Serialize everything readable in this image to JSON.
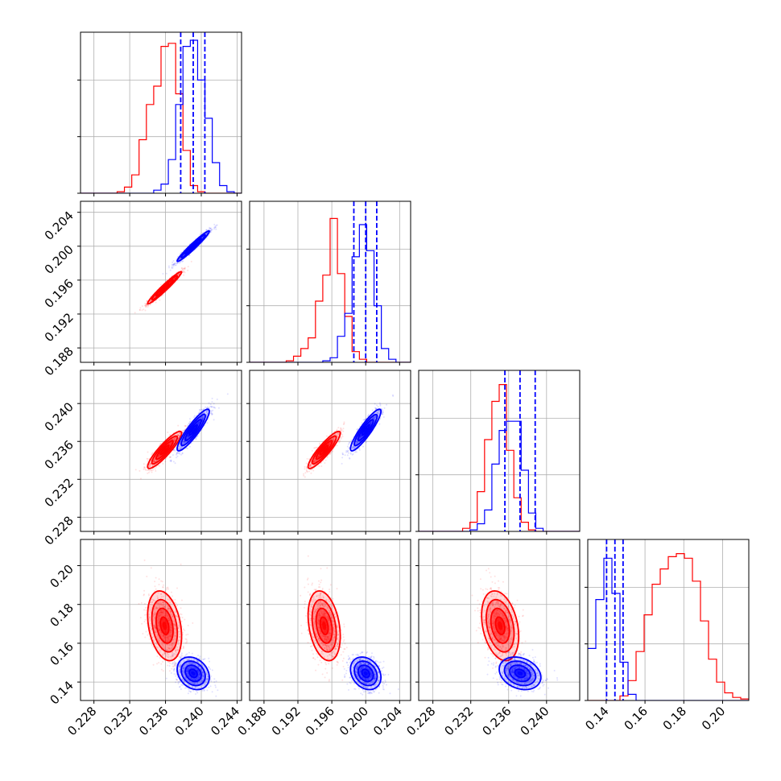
{
  "chart_data": {
    "type": "corner",
    "colors": {
      "series_a": "#ff0000",
      "series_b": "#0000ff"
    },
    "grid": true,
    "parameters": [
      {
        "ticks": [
          0.228,
          0.232,
          0.236,
          0.24,
          0.244
        ],
        "tick_labels": [
          "0.228",
          "0.232",
          "0.236",
          "0.240",
          "0.244"
        ],
        "range": [
          0.2265,
          0.2445
        ]
      },
      {
        "ticks": [
          0.188,
          0.192,
          0.196,
          0.2,
          0.204
        ],
        "tick_labels": [
          "0.188",
          "0.192",
          "0.196",
          "0.200",
          "0.204"
        ],
        "range": [
          0.1863,
          0.2053
        ]
      },
      {
        "ticks": [
          0.228,
          0.232,
          0.236,
          0.24
        ],
        "tick_labels": [
          "0.228",
          "0.232",
          "0.236",
          "0.240"
        ],
        "range": [
          0.2265,
          0.2435
        ]
      },
      {
        "ticks": [
          0.14,
          0.16,
          0.18,
          0.2
        ],
        "tick_labels": [
          "0.14",
          "0.16",
          "0.18",
          "0.20"
        ],
        "range": [
          0.1305,
          0.2135
        ]
      }
    ],
    "series": [
      {
        "color": "#ff0000",
        "mean": [
          0.2359,
          0.1951,
          0.2351,
          0.169
        ],
        "std": [
          0.00095,
          0.00095,
          0.00098,
          0.009
        ],
        "corr": [
          [
            1,
            0.97,
            0.9,
            -0.3
          ],
          [
            0.97,
            1,
            0.9,
            -0.3
          ],
          [
            0.9,
            0.9,
            1,
            -0.3
          ],
          [
            -0.3,
            -0.3,
            -0.3,
            1
          ]
        ],
        "quantile_lines": null
      },
      {
        "color": "#0000ff",
        "mean": [
          0.2391,
          0.2,
          0.2372,
          0.1445
        ],
        "std": [
          0.0009,
          0.0009,
          0.0011,
          0.0042
        ],
        "corr": [
          [
            1,
            0.97,
            0.9,
            -0.25
          ],
          [
            0.97,
            1,
            0.9,
            -0.25
          ],
          [
            0.9,
            0.9,
            1,
            -0.25
          ],
          [
            -0.25,
            -0.25,
            -0.25,
            1
          ]
        ],
        "quantile_lines": [
          [
            0.2377,
            0.2391,
            0.2404
          ],
          [
            0.1986,
            0.2,
            0.2013
          ],
          [
            0.2356,
            0.2372,
            0.2388
          ],
          [
            0.1402,
            0.1445,
            0.1487
          ]
        ]
      }
    ],
    "histograms": [
      {
        "bins": 22,
        "series_a": [
          0,
          0,
          0,
          0,
          0,
          0.01,
          0.04,
          0.12,
          0.35,
          0.58,
          0.7,
          0.96,
          0.98,
          0.65,
          0.28,
          0.05,
          0.01,
          0,
          0,
          0,
          0,
          0
        ],
        "series_b": [
          0,
          0,
          0,
          0,
          0,
          0,
          0,
          0,
          0,
          0,
          0.02,
          0.06,
          0.22,
          0.58,
          0.96,
          1.0,
          0.74,
          0.49,
          0.2,
          0.05,
          0.01,
          0
        ]
      },
      {
        "bins": 22,
        "series_a": [
          0,
          0,
          0,
          0,
          0,
          0.01,
          0.04,
          0.09,
          0.16,
          0.4,
          0.57,
          0.94,
          0.58,
          0.3,
          0.07,
          0.02,
          0,
          0,
          0,
          0,
          0,
          0
        ],
        "series_b": [
          0,
          0,
          0,
          0,
          0,
          0,
          0,
          0,
          0,
          0,
          0.01,
          0.03,
          0.17,
          0.32,
          0.69,
          0.9,
          0.73,
          0.37,
          0.09,
          0.02,
          0,
          0
        ]
      },
      {
        "bins": 22,
        "series_a": [
          0,
          0,
          0,
          0,
          0,
          0,
          0.02,
          0.06,
          0.26,
          0.6,
          0.85,
          0.96,
          0.53,
          0.22,
          0.06,
          0.01,
          0,
          0,
          0,
          0,
          0,
          0
        ],
        "series_b": [
          0,
          0,
          0,
          0,
          0,
          0,
          0,
          0.01,
          0.05,
          0.14,
          0.44,
          0.66,
          0.72,
          0.72,
          0.4,
          0.12,
          0.02,
          0,
          0,
          0,
          0,
          0
        ]
      },
      {
        "bins": 20,
        "series_a": [
          0,
          0,
          0,
          0,
          0.03,
          0.13,
          0.32,
          0.56,
          0.76,
          0.86,
          0.94,
          0.96,
          0.93,
          0.78,
          0.52,
          0.27,
          0.12,
          0.05,
          0.02,
          0.01
        ],
        "series_b": [
          0.34,
          0.66,
          0.93,
          0.7,
          0.25,
          0.04,
          0,
          0,
          0,
          0,
          0,
          0,
          0,
          0,
          0,
          0,
          0,
          0,
          0,
          0
        ]
      }
    ]
  }
}
